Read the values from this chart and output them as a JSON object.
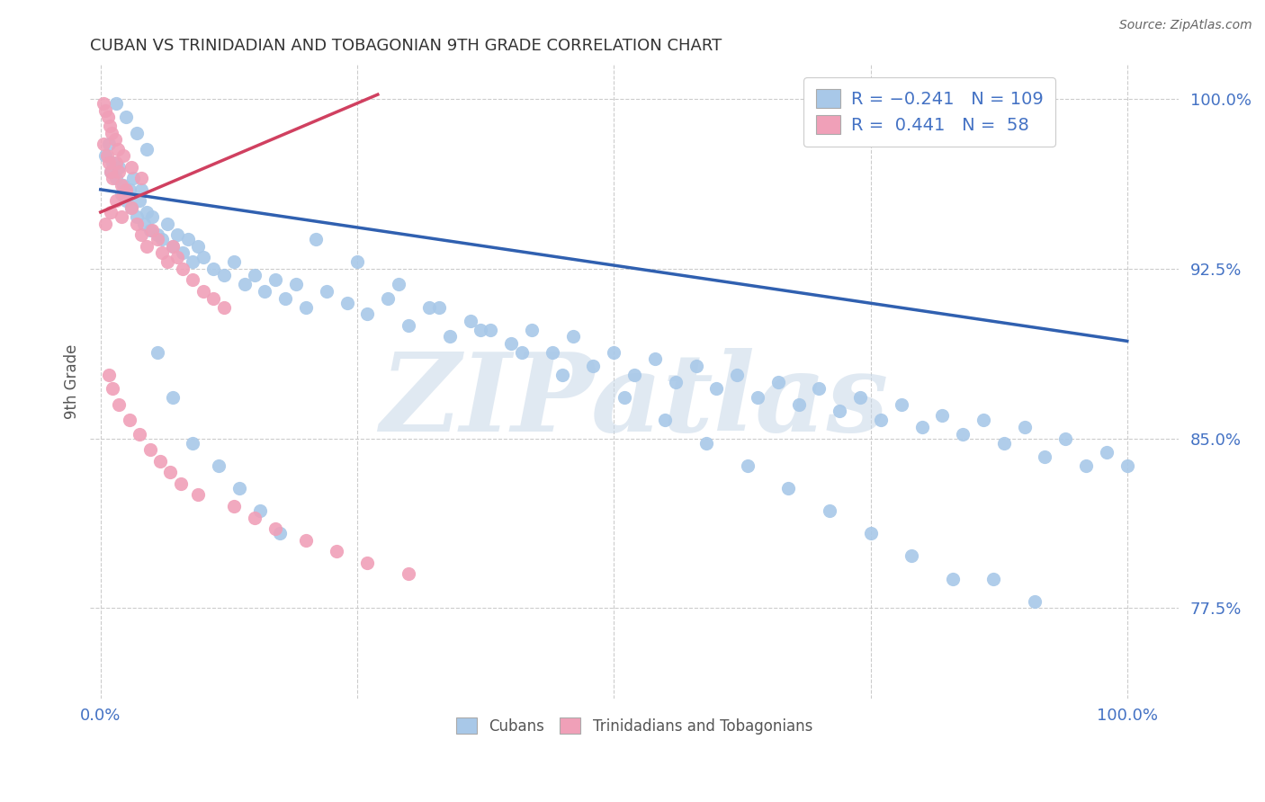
{
  "title": "CUBAN VS TRINIDADIAN AND TOBAGONIAN 9TH GRADE CORRELATION CHART",
  "source_text": "Source: ZipAtlas.com",
  "ylabel": "9th Grade",
  "xlim": [
    -0.01,
    1.05
  ],
  "ylim": [
    0.735,
    1.015
  ],
  "yticks": [
    0.775,
    0.85,
    0.925,
    1.0
  ],
  "ytick_labels": [
    "77.5%",
    "85.0%",
    "92.5%",
    "100.0%"
  ],
  "xticks": [
    0.0,
    0.25,
    0.5,
    0.75,
    1.0
  ],
  "xtick_labels": [
    "0.0%",
    "",
    "",
    "",
    "100.0%"
  ],
  "blue_color": "#a8c8e8",
  "pink_color": "#f0a0b8",
  "line_blue": "#3060b0",
  "line_pink": "#d04060",
  "axis_color": "#4472c4",
  "watermark_color": "#c8d8e8",
  "blue_line_start_y": 0.96,
  "blue_line_end_y": 0.893,
  "pink_line_start_x": 0.0,
  "pink_line_start_y": 0.95,
  "pink_line_end_x": 0.27,
  "pink_line_end_y": 1.002,
  "scatter_blue_x": [
    0.005,
    0.008,
    0.01,
    0.012,
    0.015,
    0.018,
    0.02,
    0.022,
    0.025,
    0.028,
    0.03,
    0.032,
    0.035,
    0.038,
    0.04,
    0.042,
    0.045,
    0.048,
    0.05,
    0.055,
    0.06,
    0.065,
    0.07,
    0.075,
    0.08,
    0.085,
    0.09,
    0.095,
    0.1,
    0.11,
    0.12,
    0.13,
    0.14,
    0.15,
    0.16,
    0.17,
    0.18,
    0.19,
    0.2,
    0.22,
    0.24,
    0.26,
    0.28,
    0.3,
    0.32,
    0.34,
    0.36,
    0.38,
    0.4,
    0.42,
    0.44,
    0.46,
    0.48,
    0.5,
    0.52,
    0.54,
    0.56,
    0.58,
    0.6,
    0.62,
    0.64,
    0.66,
    0.68,
    0.7,
    0.72,
    0.74,
    0.76,
    0.78,
    0.8,
    0.82,
    0.84,
    0.86,
    0.88,
    0.9,
    0.92,
    0.94,
    0.96,
    0.98,
    1.0,
    0.015,
    0.025,
    0.035,
    0.045,
    0.055,
    0.07,
    0.09,
    0.115,
    0.135,
    0.155,
    0.175,
    0.21,
    0.25,
    0.29,
    0.33,
    0.37,
    0.41,
    0.45,
    0.51,
    0.55,
    0.59,
    0.63,
    0.67,
    0.71,
    0.75,
    0.79,
    0.83,
    0.87,
    0.91
  ],
  "scatter_blue_y": [
    0.975,
    0.98,
    0.968,
    0.972,
    0.965,
    0.97,
    0.958,
    0.962,
    0.955,
    0.96,
    0.952,
    0.965,
    0.948,
    0.955,
    0.96,
    0.945,
    0.95,
    0.942,
    0.948,
    0.94,
    0.938,
    0.945,
    0.935,
    0.94,
    0.932,
    0.938,
    0.928,
    0.935,
    0.93,
    0.925,
    0.922,
    0.928,
    0.918,
    0.922,
    0.915,
    0.92,
    0.912,
    0.918,
    0.908,
    0.915,
    0.91,
    0.905,
    0.912,
    0.9,
    0.908,
    0.895,
    0.902,
    0.898,
    0.892,
    0.898,
    0.888,
    0.895,
    0.882,
    0.888,
    0.878,
    0.885,
    0.875,
    0.882,
    0.872,
    0.878,
    0.868,
    0.875,
    0.865,
    0.872,
    0.862,
    0.868,
    0.858,
    0.865,
    0.855,
    0.86,
    0.852,
    0.858,
    0.848,
    0.855,
    0.842,
    0.85,
    0.838,
    0.844,
    0.838,
    0.998,
    0.992,
    0.985,
    0.978,
    0.888,
    0.868,
    0.848,
    0.838,
    0.828,
    0.818,
    0.808,
    0.938,
    0.928,
    0.918,
    0.908,
    0.898,
    0.888,
    0.878,
    0.868,
    0.858,
    0.848,
    0.838,
    0.828,
    0.818,
    0.808,
    0.798,
    0.788,
    0.788,
    0.778
  ],
  "scatter_pink_x": [
    0.003,
    0.006,
    0.008,
    0.01,
    0.012,
    0.015,
    0.018,
    0.02,
    0.022,
    0.025,
    0.005,
    0.01,
    0.015,
    0.02,
    0.025,
    0.03,
    0.035,
    0.04,
    0.045,
    0.05,
    0.055,
    0.06,
    0.065,
    0.07,
    0.075,
    0.08,
    0.09,
    0.1,
    0.11,
    0.12,
    0.008,
    0.012,
    0.018,
    0.028,
    0.038,
    0.048,
    0.058,
    0.068,
    0.078,
    0.095,
    0.13,
    0.15,
    0.17,
    0.2,
    0.23,
    0.26,
    0.3,
    0.003,
    0.005,
    0.007,
    0.009,
    0.011,
    0.014,
    0.017,
    0.022,
    0.03,
    0.04
  ],
  "scatter_pink_y": [
    0.98,
    0.975,
    0.972,
    0.968,
    0.965,
    0.972,
    0.968,
    0.962,
    0.958,
    0.96,
    0.945,
    0.95,
    0.955,
    0.948,
    0.958,
    0.952,
    0.945,
    0.94,
    0.935,
    0.942,
    0.938,
    0.932,
    0.928,
    0.935,
    0.93,
    0.925,
    0.92,
    0.915,
    0.912,
    0.908,
    0.878,
    0.872,
    0.865,
    0.858,
    0.852,
    0.845,
    0.84,
    0.835,
    0.83,
    0.825,
    0.82,
    0.815,
    0.81,
    0.805,
    0.8,
    0.795,
    0.79,
    0.998,
    0.995,
    0.992,
    0.988,
    0.985,
    0.982,
    0.978,
    0.975,
    0.97,
    0.965
  ]
}
